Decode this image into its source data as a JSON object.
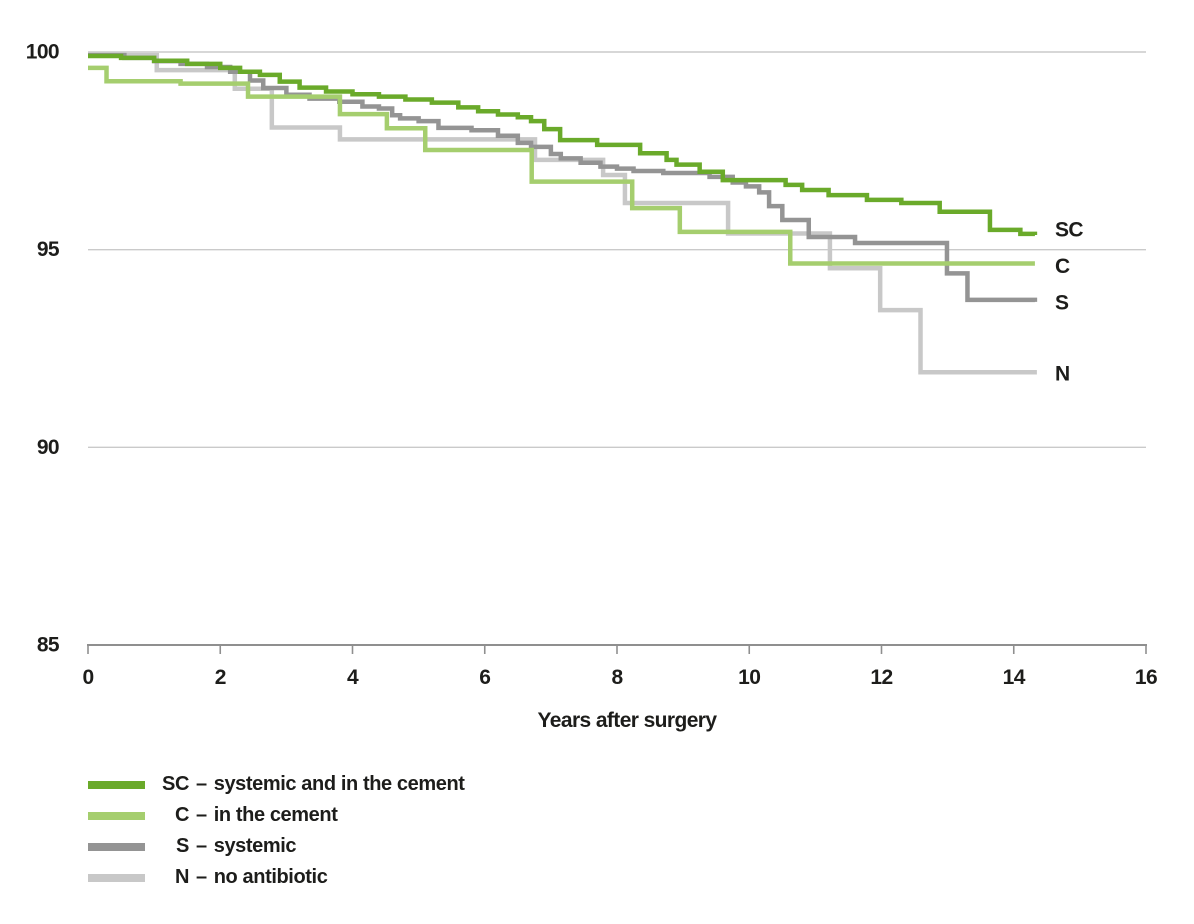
{
  "chart_data": {
    "type": "line",
    "line_style": "step-after",
    "title": "",
    "xlabel": "Years after surgery",
    "ylabel": "",
    "xlim": [
      0,
      16
    ],
    "ylim": [
      85,
      100
    ],
    "x_ticks": [
      0,
      2,
      4,
      6,
      8,
      10,
      12,
      14,
      16
    ],
    "y_ticks": [
      100,
      95,
      90,
      85
    ],
    "y_gridlines": [
      100,
      95,
      90
    ],
    "grid": "horizontal-only",
    "legend_position": "bottom-left",
    "series": [
      {
        "code": "SC",
        "label": "systemic and in the cement",
        "color": "#6aaa2a",
        "points": [
          [
            0,
            99.9
          ],
          [
            0.5,
            99.85
          ],
          [
            1.0,
            99.78
          ],
          [
            1.5,
            99.7
          ],
          [
            2.0,
            99.6
          ],
          [
            2.3,
            99.5
          ],
          [
            2.6,
            99.42
          ],
          [
            2.9,
            99.25
          ],
          [
            3.2,
            99.1
          ],
          [
            3.6,
            99.0
          ],
          [
            4.0,
            98.93
          ],
          [
            4.4,
            98.87
          ],
          [
            4.8,
            98.8
          ],
          [
            5.2,
            98.72
          ],
          [
            5.6,
            98.6
          ],
          [
            5.9,
            98.5
          ],
          [
            6.2,
            98.42
          ],
          [
            6.5,
            98.35
          ],
          [
            6.7,
            98.25
          ],
          [
            6.9,
            98.05
          ],
          [
            7.14,
            97.77
          ],
          [
            7.7,
            97.65
          ],
          [
            8.35,
            97.44
          ],
          [
            8.75,
            97.27
          ],
          [
            8.9,
            97.15
          ],
          [
            9.25,
            96.97
          ],
          [
            9.6,
            96.76
          ],
          [
            10.55,
            96.64
          ],
          [
            10.8,
            96.51
          ],
          [
            11.2,
            96.38
          ],
          [
            11.78,
            96.26
          ],
          [
            12.3,
            96.18
          ],
          [
            12.88,
            95.96
          ],
          [
            13.64,
            95.5
          ],
          [
            14.1,
            95.4
          ],
          [
            14.32,
            95.37
          ]
        ]
      },
      {
        "code": "C",
        "label": "in the cement",
        "color": "#a5ce6e",
        "points": [
          [
            0,
            99.6
          ],
          [
            0.28,
            99.26
          ],
          [
            1.4,
            99.2
          ],
          [
            2.42,
            98.87
          ],
          [
            3.81,
            98.43
          ],
          [
            4.52,
            98.07
          ],
          [
            5.1,
            97.52
          ],
          [
            6.71,
            96.72
          ],
          [
            8.23,
            96.05
          ],
          [
            8.95,
            95.45
          ],
          [
            10.62,
            94.65
          ],
          [
            14.32,
            94.65
          ]
        ]
      },
      {
        "code": "S",
        "label": "systemic",
        "color": "#949494",
        "points": [
          [
            0,
            99.92
          ],
          [
            0.55,
            99.85
          ],
          [
            1.0,
            99.77
          ],
          [
            1.4,
            99.7
          ],
          [
            1.8,
            99.62
          ],
          [
            2.15,
            99.5
          ],
          [
            2.45,
            99.28
          ],
          [
            2.65,
            99.09
          ],
          [
            3.0,
            98.92
          ],
          [
            3.35,
            98.82
          ],
          [
            3.8,
            98.74
          ],
          [
            4.15,
            98.62
          ],
          [
            4.4,
            98.57
          ],
          [
            4.6,
            98.4
          ],
          [
            4.72,
            98.32
          ],
          [
            5.0,
            98.25
          ],
          [
            5.3,
            98.08
          ],
          [
            5.8,
            98.02
          ],
          [
            6.2,
            97.88
          ],
          [
            6.5,
            97.7
          ],
          [
            6.7,
            97.6
          ],
          [
            7.0,
            97.42
          ],
          [
            7.15,
            97.31
          ],
          [
            7.45,
            97.2
          ],
          [
            7.75,
            97.1
          ],
          [
            8.0,
            97.05
          ],
          [
            8.25,
            96.99
          ],
          [
            8.7,
            96.94
          ],
          [
            9.4,
            96.84
          ],
          [
            9.75,
            96.7
          ],
          [
            9.95,
            96.6
          ],
          [
            10.15,
            96.45
          ],
          [
            10.3,
            96.1
          ],
          [
            10.5,
            95.75
          ],
          [
            10.9,
            95.32
          ],
          [
            11.6,
            95.17
          ],
          [
            12.99,
            94.4
          ],
          [
            13.3,
            93.73
          ],
          [
            14.32,
            93.68
          ]
        ]
      },
      {
        "code": "N",
        "label": "no antibiotic",
        "color": "#c8c8c8",
        "points": [
          [
            0,
            99.92
          ],
          [
            1.04,
            99.54
          ],
          [
            2.22,
            99.07
          ],
          [
            2.78,
            98.09
          ],
          [
            3.81,
            97.79
          ],
          [
            6.76,
            97.27
          ],
          [
            7.79,
            96.89
          ],
          [
            8.12,
            96.18
          ],
          [
            9.68,
            95.41
          ],
          [
            11.22,
            94.53
          ],
          [
            11.98,
            93.47
          ],
          [
            12.59,
            91.9
          ],
          [
            14.35,
            91.9
          ]
        ]
      }
    ]
  },
  "legend": {
    "separator": "–",
    "items": [
      {
        "code": "SC",
        "label": "systemic and in the cement"
      },
      {
        "code": "C",
        "label": "in the cement"
      },
      {
        "code": "S",
        "label": "systemic"
      },
      {
        "code": "N",
        "label": "no antibiotic"
      }
    ]
  },
  "colors": {
    "background": "#ffffff",
    "grid": "#cacaca",
    "axis": "#8f8f8f",
    "text": "#1d1d1b"
  }
}
